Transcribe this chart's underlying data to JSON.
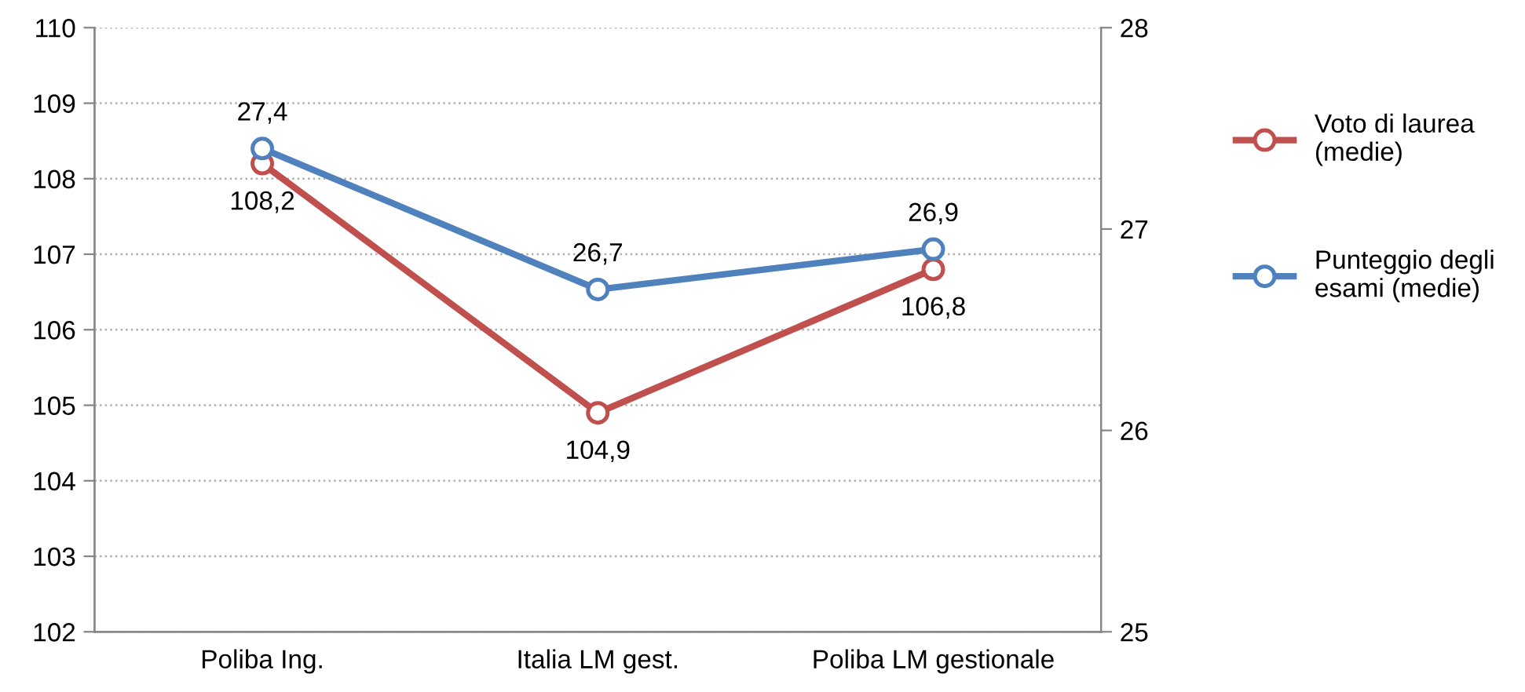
{
  "chart_data": {
    "type": "line",
    "categories": [
      "Poliba Ing.",
      "Italia LM gest.",
      "Poliba LM gestionale"
    ],
    "series": [
      {
        "name": "Voto di laurea\n(medie)",
        "color": "#c0504d",
        "values": [
          108.2,
          104.9,
          106.8
        ],
        "value_labels": [
          "108,2",
          "104,9",
          "106,8"
        ]
      },
      {
        "name": "Punteggio degli\nesami (medie)",
        "color": "#4f81bd",
        "values": [
          27.4,
          26.7,
          26.9
        ],
        "axis": "y2",
        "value_labels": [
          "27,4",
          "26,7",
          "26,9"
        ]
      }
    ],
    "ylim": [
      102,
      110
    ],
    "yticks": [
      102,
      103,
      104,
      105,
      106,
      107,
      108,
      109,
      110
    ],
    "y2lim": [
      25,
      28
    ],
    "y2ticks": [
      25,
      26,
      27,
      28
    ],
    "grid": "y",
    "legend": "right",
    "marker": "circle",
    "line_style": "solid"
  }
}
